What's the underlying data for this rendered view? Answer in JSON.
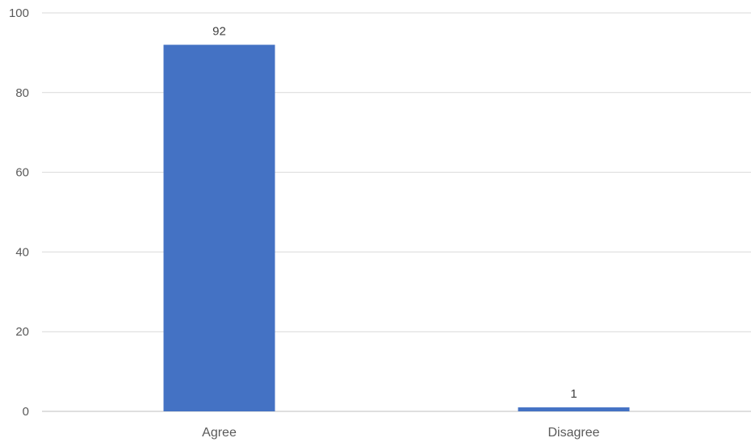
{
  "chart_data": {
    "type": "bar",
    "categories": [
      "Agree",
      "Disagree"
    ],
    "values": [
      92,
      1
    ],
    "ylim": [
      0,
      100
    ],
    "yticks": [
      0,
      20,
      40,
      60,
      80,
      100
    ],
    "data_labels": [
      "92",
      "1"
    ],
    "grid": true,
    "legend": "none",
    "colors": {
      "bar": "#4472c4",
      "grid": "#d9d9d9",
      "text": "#595959"
    }
  }
}
